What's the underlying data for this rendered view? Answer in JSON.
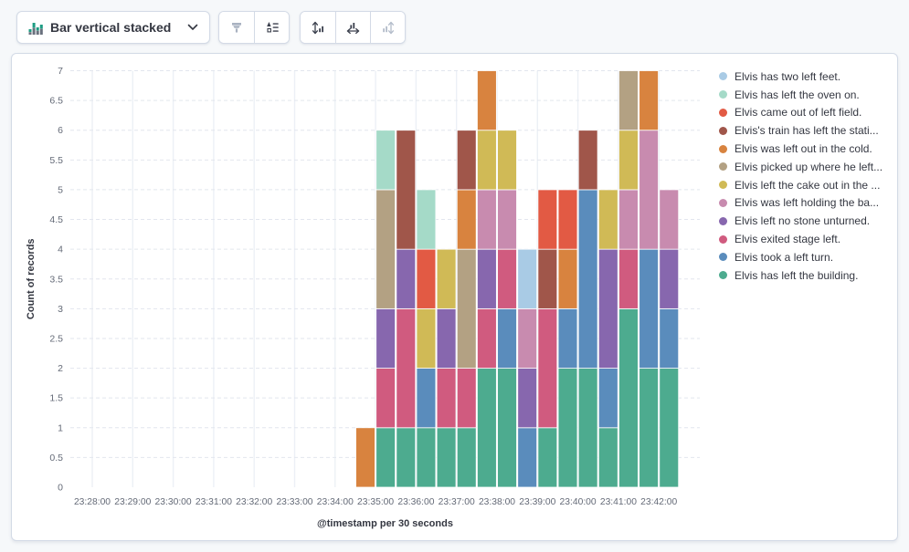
{
  "toolbar": {
    "chart_type_label": "Bar vertical stacked",
    "icons": {
      "chart_type": "bar-vertical-stacked-icon",
      "chevron": "chevron-down-icon",
      "display_group": [
        "brush-icon",
        "legend-values-icon"
      ],
      "axis_group": [
        "axis-left-icon",
        "axis-bottom-icon",
        "axis-right-icon"
      ]
    },
    "colors": {
      "icon_enabled": "#343741",
      "icon_disabled": "#aab3c1",
      "icon_green": "#1d9d83",
      "icon_gray": "#69707d"
    }
  },
  "chart": {
    "y_axis": {
      "title": "Count of records",
      "tick_labels": [
        "0",
        "0.5",
        "1",
        "1.5",
        "2",
        "2.5",
        "3",
        "3.5",
        "4",
        "4.5",
        "5",
        "5.5",
        "6",
        "6.5",
        "7"
      ]
    },
    "x_axis": {
      "title": "@timestamp per 30 seconds",
      "tick_labels": [
        "23:28:00",
        "23:29:00",
        "23:30:00",
        "23:31:00",
        "23:32:00",
        "23:33:00",
        "23:34:00",
        "23:35:00",
        "23:36:00",
        "23:37:00",
        "23:38:00",
        "23:39:00",
        "23:40:00",
        "23:41:00",
        "23:42:00"
      ]
    }
  },
  "chart_data": {
    "type": "bar",
    "stacked": true,
    "title": "",
    "xlabel": "@timestamp per 30 seconds",
    "ylabel": "Count of records",
    "ylim": [
      0,
      7
    ],
    "y_tick_step": 0.5,
    "grid": true,
    "legend_position": "right",
    "bucket_interval": "30 seconds",
    "x_axis_range": [
      "23:28:00",
      "23:42:00"
    ],
    "x_buckets": [
      "23:34:30",
      "23:35:00",
      "23:35:30",
      "23:36:00",
      "23:36:30",
      "23:37:00",
      "23:37:30",
      "23:38:00",
      "23:38:30",
      "23:39:00",
      "23:39:30",
      "23:40:00",
      "23:40:30",
      "23:41:00",
      "23:41:30",
      "23:42:00"
    ],
    "series_bottom_to_top": [
      {
        "name": "Elvis has left the building.",
        "color": "#4DAB8F",
        "values": [
          0,
          1,
          1,
          1,
          1,
          1,
          2,
          2,
          0,
          1,
          2,
          2,
          1,
          3,
          2,
          2
        ]
      },
      {
        "name": "Elvis took a left turn.",
        "color": "#5A8CBC",
        "values": [
          0,
          0,
          0,
          1,
          0,
          0,
          0,
          1,
          1,
          0,
          1,
          3,
          1,
          0,
          2,
          1
        ]
      },
      {
        "name": "Elvis exited stage left.",
        "color": "#D05B7F",
        "values": [
          0,
          1,
          2,
          0,
          1,
          1,
          1,
          1,
          0,
          2,
          0,
          0,
          0,
          1,
          0,
          0
        ]
      },
      {
        "name": "Elvis left no stone unturned.",
        "color": "#8767AE",
        "values": [
          0,
          1,
          1,
          0,
          1,
          0,
          1,
          0,
          1,
          0,
          0,
          0,
          2,
          0,
          0,
          1
        ]
      },
      {
        "name": "Elvis was left holding the ba...",
        "color": "#C88BAF",
        "values": [
          0,
          0,
          0,
          0,
          0,
          0,
          1,
          1,
          1,
          0,
          0,
          0,
          0,
          1,
          2,
          1
        ]
      },
      {
        "name": "Elvis left the cake out in the ...",
        "color": "#D0BA56",
        "values": [
          0,
          0,
          0,
          1,
          1,
          0,
          1,
          1,
          0,
          0,
          0,
          0,
          1,
          1,
          0,
          0
        ]
      },
      {
        "name": "Elvis picked up where he left...",
        "color": "#B3A183",
        "values": [
          0,
          2,
          0,
          0,
          0,
          2,
          0,
          0,
          0,
          0,
          0,
          0,
          0,
          1,
          0,
          0
        ]
      },
      {
        "name": "Elvis was left out in the cold.",
        "color": "#D8833F",
        "values": [
          1,
          0,
          0,
          0,
          0,
          1,
          1,
          0,
          0,
          0,
          1,
          0,
          0,
          0,
          1,
          0
        ]
      },
      {
        "name": "Elvis's train has left the stati...",
        "color": "#A0564A",
        "values": [
          0,
          0,
          2,
          0,
          0,
          1,
          0,
          0,
          0,
          1,
          0,
          1,
          0,
          0,
          0,
          0
        ]
      },
      {
        "name": "Elvis came out of left field.",
        "color": "#E25A44",
        "values": [
          0,
          0,
          0,
          1,
          0,
          0,
          0,
          0,
          0,
          1,
          1,
          0,
          0,
          0,
          0,
          0
        ]
      },
      {
        "name": "Elvis has left the oven on.",
        "color": "#A5DAC8",
        "values": [
          0,
          1,
          0,
          1,
          0,
          0,
          0,
          0,
          0,
          0,
          0,
          0,
          0,
          0,
          0,
          0
        ]
      },
      {
        "name": "Elvis has two left feet.",
        "color": "#A9CBE5",
        "values": [
          0,
          0,
          0,
          0,
          0,
          0,
          0,
          0,
          1,
          0,
          0,
          0,
          0,
          0,
          0,
          0
        ]
      }
    ]
  },
  "legend": {
    "items": [
      {
        "label": "Elvis has two left feet.",
        "color": "#A9CBE5"
      },
      {
        "label": "Elvis has left the oven on.",
        "color": "#A5DAC8"
      },
      {
        "label": "Elvis came out of left field.",
        "color": "#E25A44"
      },
      {
        "label": "Elvis's train has left the stati...",
        "color": "#A0564A"
      },
      {
        "label": "Elvis was left out in the cold.",
        "color": "#D8833F"
      },
      {
        "label": "Elvis picked up where he left...",
        "color": "#B3A183"
      },
      {
        "label": "Elvis left the cake out in the ...",
        "color": "#D0BA56"
      },
      {
        "label": "Elvis was left holding the ba...",
        "color": "#C88BAF"
      },
      {
        "label": "Elvis left no stone unturned.",
        "color": "#8767AE"
      },
      {
        "label": "Elvis exited stage left.",
        "color": "#D05B7F"
      },
      {
        "label": "Elvis took a left turn.",
        "color": "#5A8CBC"
      },
      {
        "label": "Elvis has left the building.",
        "color": "#4DAB8F"
      }
    ]
  },
  "style_colors": {
    "page_bg": "#f6f8fa",
    "panel_bg": "#ffffff",
    "panel_border": "#d3dae6",
    "grid_dashed": "#e2e6ee",
    "grid_vertical": "#ecf0f6",
    "tick_text": "#646a77",
    "axis_title_text": "#343741"
  }
}
